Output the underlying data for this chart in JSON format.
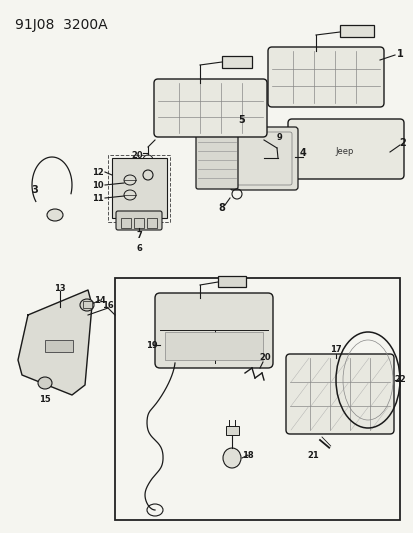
{
  "title": "91J08  3200A",
  "bg_color": "#f5f5f0",
  "line_color": "#1a1a1a",
  "fig_width": 4.14,
  "fig_height": 5.33,
  "dpi": 100
}
